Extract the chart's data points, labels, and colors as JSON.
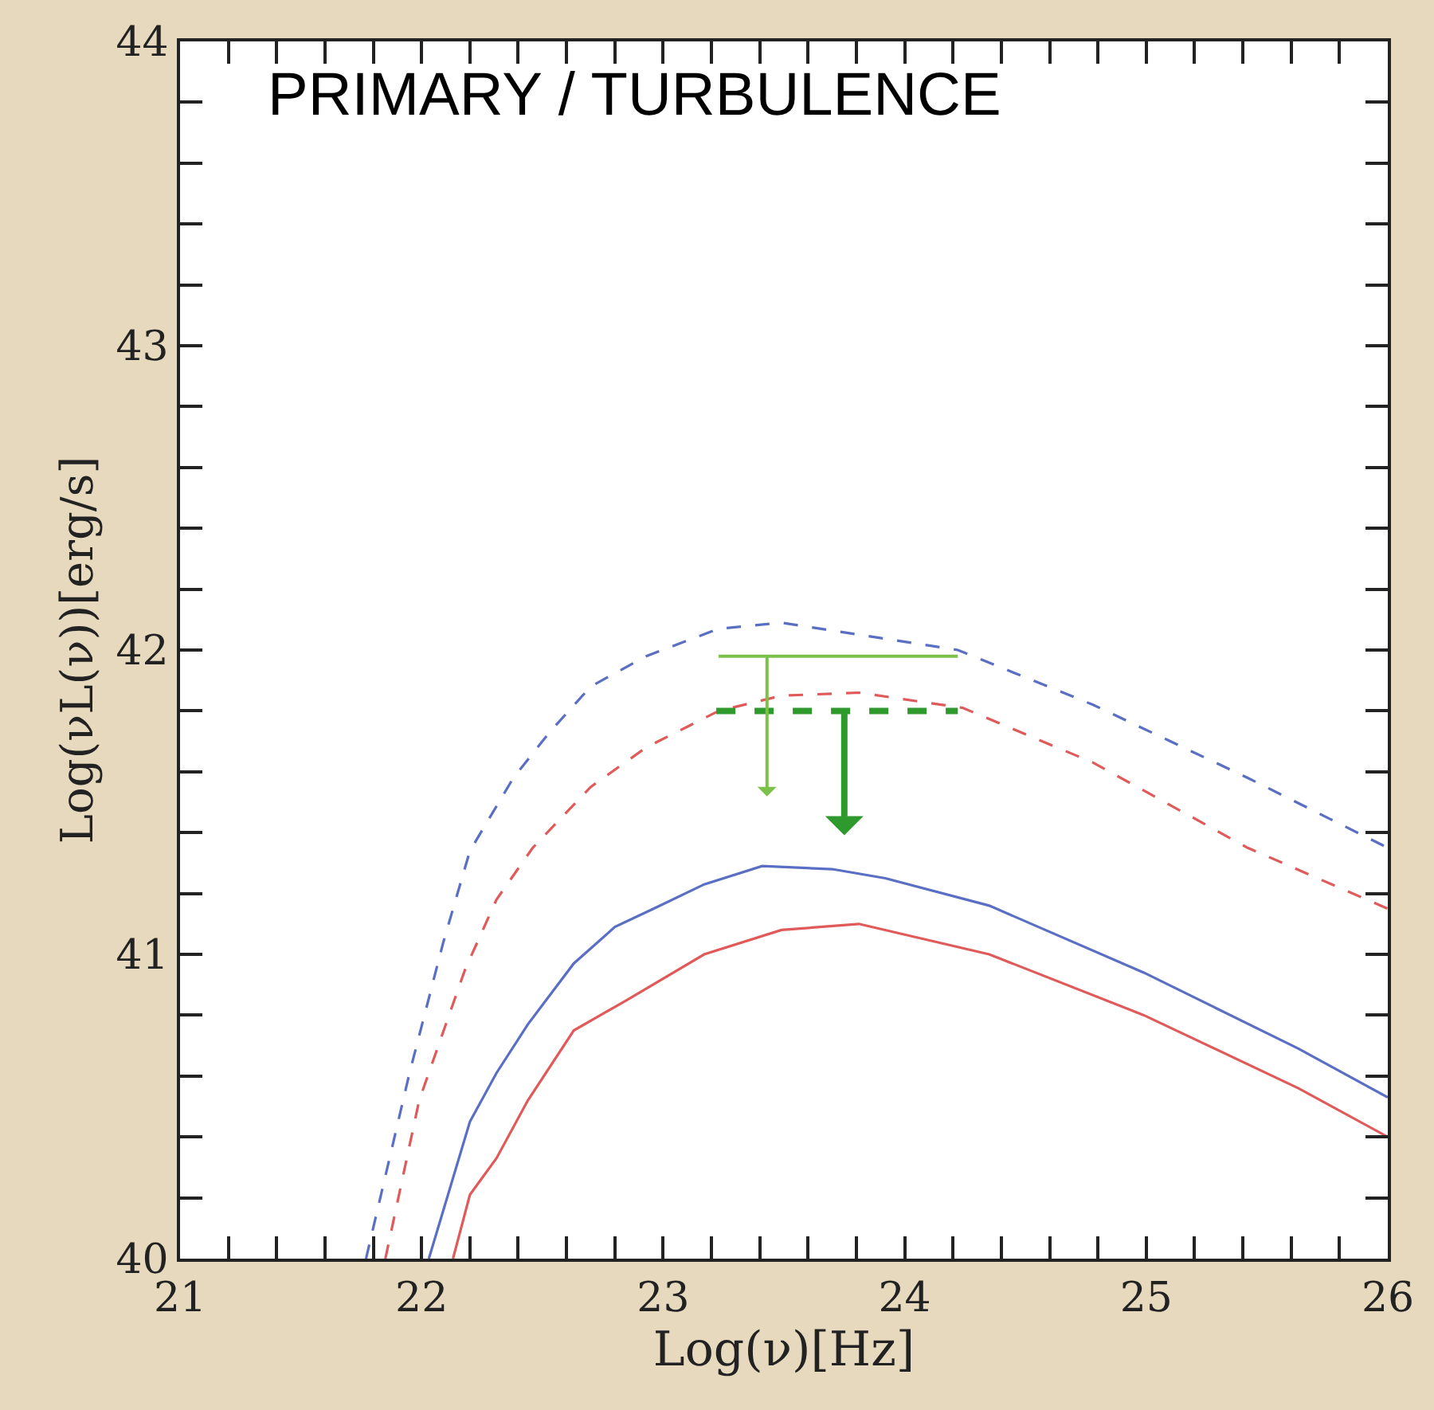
{
  "chart_data": {
    "type": "line",
    "xlabel": "Log(ν)[Hz]",
    "ylabel": "Log(νL(ν))[erg/s]",
    "annotations": [
      "PRIMARY / TURBULENCE"
    ],
    "xlim": [
      21,
      26
    ],
    "ylim": [
      40,
      44
    ],
    "xticks": [
      21,
      {
        "value": 21.2,
        "label": null
      },
      {
        "value": 21.4,
        "label": null
      },
      {
        "value": 21.6,
        "label": null
      },
      {
        "value": 21.8,
        "label": null
      },
      22,
      {
        "value": 22.2,
        "label": null
      },
      {
        "value": 22.4,
        "label": null
      },
      {
        "value": 22.6,
        "label": null
      },
      {
        "value": 22.8,
        "label": null
      },
      23,
      {
        "value": 23.2,
        "label": null
      },
      {
        "value": 23.4,
        "label": null
      },
      {
        "value": 23.6,
        "label": null
      },
      {
        "value": 23.8,
        "label": null
      },
      24,
      {
        "value": 24.2,
        "label": null
      },
      {
        "value": 24.4,
        "label": null
      },
      {
        "value": 24.6,
        "label": null
      },
      {
        "value": 24.8,
        "label": null
      },
      25,
      {
        "value": 25.2,
        "label": null
      },
      {
        "value": 25.4,
        "label": null
      },
      {
        "value": 25.6,
        "label": null
      },
      {
        "value": 25.8,
        "label": null
      },
      26
    ],
    "yticks": [
      40,
      {
        "value": 40.2,
        "label": null
      },
      {
        "value": 40.4,
        "label": null
      },
      {
        "value": 40.6,
        "label": null
      },
      {
        "value": 40.8,
        "label": null
      },
      41,
      {
        "value": 41.2,
        "label": null
      },
      {
        "value": 41.4,
        "label": null
      },
      {
        "value": 41.6,
        "label": null
      },
      {
        "value": 41.8,
        "label": null
      },
      42,
      {
        "value": 42.2,
        "label": null
      },
      {
        "value": 42.4,
        "label": null
      },
      {
        "value": 42.6,
        "label": null
      },
      {
        "value": 42.8,
        "label": null
      },
      43,
      {
        "value": 43.2,
        "label": null
      },
      {
        "value": 43.4,
        "label": null
      },
      {
        "value": 43.6,
        "label": null
      },
      {
        "value": 43.8,
        "label": null
      },
      44
    ],
    "marker": "none",
    "series": [
      {
        "color": "#5a6fc4",
        "line_style": "dashed",
        "x": [
          21.77,
          21.95,
          22.09,
          22.2,
          22.38,
          22.53,
          22.7,
          22.93,
          23.23,
          23.49,
          24.22,
          24.78,
          25.42,
          26.0
        ],
        "values": [
          40.0,
          40.61,
          41.04,
          41.34,
          41.58,
          41.73,
          41.88,
          41.98,
          42.07,
          42.09,
          42.0,
          41.82,
          41.58,
          41.35
        ]
      },
      {
        "color": "#e05a5a",
        "line_style": "dashed",
        "x": [
          21.85,
          21.99,
          22.18,
          22.31,
          22.46,
          22.7,
          22.93,
          23.23,
          23.49,
          23.81,
          24.24,
          24.78,
          25.42,
          26.0
        ],
        "values": [
          40.0,
          40.52,
          40.95,
          41.18,
          41.35,
          41.55,
          41.68,
          41.8,
          41.85,
          41.86,
          41.81,
          41.63,
          41.35,
          41.15
        ]
      },
      {
        "color": "#5a6fc4",
        "line_style": "solid",
        "x": [
          22.03,
          22.2,
          22.31,
          22.44,
          22.63,
          22.8,
          22.96,
          23.17,
          23.41,
          23.7,
          23.92,
          24.35,
          24.99,
          25.63,
          26.0
        ],
        "values": [
          40.0,
          40.45,
          40.61,
          40.77,
          40.97,
          41.09,
          41.15,
          41.23,
          41.29,
          41.28,
          41.25,
          41.16,
          40.94,
          40.69,
          40.53
        ]
      },
      {
        "color": "#e05a5a",
        "line_style": "solid",
        "x": [
          22.13,
          22.2,
          22.31,
          22.44,
          22.63,
          22.85,
          23.17,
          23.49,
          23.81,
          24.35,
          24.99,
          25.63,
          26.0
        ],
        "values": [
          40.0,
          40.21,
          40.33,
          40.52,
          40.75,
          40.85,
          41.0,
          41.08,
          41.1,
          41.0,
          40.8,
          40.56,
          40.4
        ]
      },
      {
        "color": "#7cc24a",
        "line_style": "solid",
        "x": [
          23.23,
          23.43,
          24.22
        ],
        "values": [
          41.98,
          41.98,
          41.98
        ]
      },
      {
        "color": "#2e9a2e",
        "line_style": "dashed",
        "x": [
          23.22,
          23.75,
          24.22
        ],
        "values": [
          41.8,
          41.8,
          41.8
        ]
      }
    ]
  }
}
